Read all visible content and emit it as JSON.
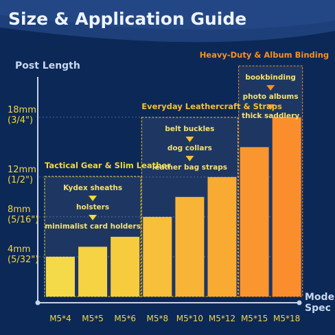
{
  "chart_data": {
    "type": "bar",
    "title": "Size & Application Guide",
    "y_axis_label": "Post Length",
    "x_axis_label": "Model\nSpec",
    "categories": [
      "M5*4",
      "M5*5",
      "M5*6",
      "M5*8",
      "M5*10",
      "M5*12",
      "M5*15",
      "M5*18"
    ],
    "values": [
      4,
      5,
      6,
      8,
      10,
      12,
      15,
      18
    ],
    "colors": [
      "#f4d83c",
      "#f5d035",
      "#f6c830",
      "#f7bb2c",
      "#f8af28",
      "#f8a424",
      "#f98f20",
      "#fa851c"
    ],
    "ylim": [
      0,
      21.5
    ],
    "yticks": [
      {
        "value": 4,
        "label": "4mm\n(5/32\")"
      },
      {
        "value": 8,
        "label": "8mm\n(5/16\")"
      },
      {
        "value": 12,
        "label": "12mm\n(1/2\")"
      },
      {
        "value": 18,
        "label": "18mm\n(3/4\")"
      }
    ],
    "grid": true,
    "groups": [
      {
        "title": "Tactical Gear & Slim Leather",
        "color": "#f4d83c",
        "categories": [
          "M5*4",
          "M5*5",
          "M5*6"
        ],
        "items": [
          "Kydex sheaths",
          "holsters",
          "minimalist card holders"
        ]
      },
      {
        "title": "Everyday Leathercraft & Straps",
        "color": "#f7bf2e",
        "categories": [
          "M5*8",
          "M5*10",
          "M5*12"
        ],
        "items": [
          "belt buckles",
          "dog collars",
          "leather bag straps"
        ]
      },
      {
        "title": "Heavy-Duty & Album Binding",
        "color": "#f98f20",
        "categories": [
          "M5*15",
          "M5*18"
        ],
        "items": [
          "bookbinding",
          "photo albums",
          "thick saddlery"
        ]
      }
    ]
  }
}
